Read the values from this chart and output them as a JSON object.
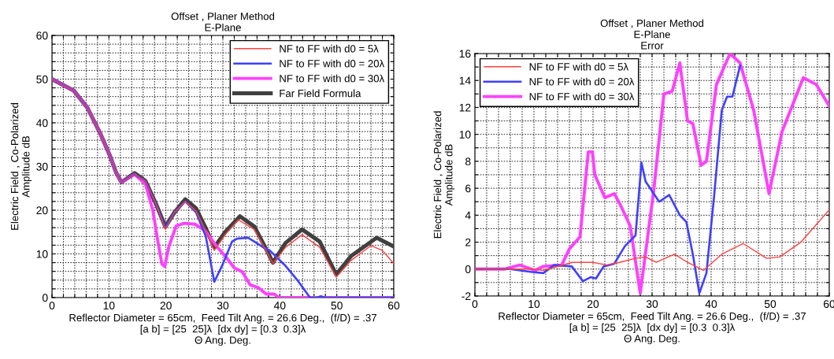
{
  "chart_data": [
    {
      "type": "line",
      "title": "Offset , Planer Method\nE-Plane",
      "ylabel": "Electric Field , Co-Polarized\nAmplitude dB",
      "xlabel": "Reflector Diameter = 65cm,  Feed Tilt Ang. = 26.6 Deg.,  (f/D) = .37\n[a b] = [25  25]λ  [dx dy] = [0.3  0.3]λ\nΘ Ang. Deg.",
      "xlim": [
        0,
        60
      ],
      "ylim": [
        0,
        60
      ],
      "xticks": [
        0,
        {
          "value": 2,
          "label": null
        },
        {
          "value": 4,
          "label": null
        },
        {
          "value": 6,
          "label": null
        },
        {
          "value": 8,
          "label": null
        },
        10,
        {
          "value": 12,
          "label": null
        },
        {
          "value": 14,
          "label": null
        },
        {
          "value": 16,
          "label": null
        },
        {
          "value": 18,
          "label": null
        },
        20,
        {
          "value": 22,
          "label": null
        },
        {
          "value": 24,
          "label": null
        },
        {
          "value": 26,
          "label": null
        },
        {
          "value": 28,
          "label": null
        },
        30,
        {
          "value": 32,
          "label": null
        },
        {
          "value": 34,
          "label": null
        },
        {
          "value": 36,
          "label": null
        },
        {
          "value": 38,
          "label": null
        },
        40,
        {
          "value": 42,
          "label": null
        },
        {
          "value": 44,
          "label": null
        },
        {
          "value": 46,
          "label": null
        },
        {
          "value": 48,
          "label": null
        },
        50,
        {
          "value": 52,
          "label": null
        },
        {
          "value": 54,
          "label": null
        },
        {
          "value": 56,
          "label": null
        },
        {
          "value": 58,
          "label": null
        },
        60
      ],
      "yticks": [
        0,
        {
          "value": 2,
          "label": null
        },
        {
          "value": 4,
          "label": null
        },
        {
          "value": 6,
          "label": null
        },
        {
          "value": 8,
          "label": null
        },
        10,
        {
          "value": 12,
          "label": null
        },
        {
          "value": 14,
          "label": null
        },
        {
          "value": 16,
          "label": null
        },
        {
          "value": 18,
          "label": null
        },
        20,
        {
          "value": 22,
          "label": null
        },
        {
          "value": 24,
          "label": null
        },
        {
          "value": 26,
          "label": null
        },
        {
          "value": 28,
          "label": null
        },
        30,
        {
          "value": 32,
          "label": null
        },
        {
          "value": 34,
          "label": null
        },
        {
          "value": 36,
          "label": null
        },
        {
          "value": 38,
          "label": null
        },
        40,
        {
          "value": 42,
          "label": null
        },
        {
          "value": 44,
          "label": null
        },
        {
          "value": 46,
          "label": null
        },
        {
          "value": 48,
          "label": null
        },
        50,
        {
          "value": 52,
          "label": null
        },
        {
          "value": 54,
          "label": null
        },
        {
          "value": 56,
          "label": null
        },
        {
          "value": 58,
          "label": null
        },
        60
      ],
      "grid": true,
      "legend": "top right",
      "line_style": "solid",
      "series": [
        {
          "name": "NF to FF with d0 = 5λ",
          "color": "#ff4040",
          "x": [
            0,
            3.8,
            6.2,
            8.5,
            10.1,
            11.3,
            12.2,
            14.5,
            16.4,
            18.3,
            19.9,
            21.5,
            23.4,
            25.3,
            27.1,
            28.5,
            30.4,
            32.7,
            35.5,
            37.4,
            38.8,
            41,
            43.9,
            47,
            49.9,
            52.5,
            56,
            58,
            60
          ],
          "values": [
            50,
            47.4,
            43.5,
            37.5,
            32.7,
            28.5,
            26.4,
            28.2,
            26.7,
            21.3,
            15.6,
            19.5,
            22,
            19.8,
            15,
            10.8,
            14.4,
            17.8,
            15.6,
            11.2,
            7.8,
            11.5,
            14.4,
            11.5,
            4.7,
            8.5,
            11.9,
            10.8,
            7.8
          ]
        },
        {
          "name": "NF to FF with d0 = 20λ",
          "color": "#4040ff",
          "x": [
            0,
            3.8,
            6.2,
            8.5,
            10.1,
            11.3,
            12.2,
            14.5,
            16.4,
            18.3,
            19.9,
            21.5,
            23.4,
            25.3,
            27,
            28.5,
            29.9,
            31.6,
            32.5,
            34.4,
            36.3,
            37.2,
            38.2,
            40.9,
            43.2,
            45.3,
            46.5,
            47.2,
            48,
            60
          ],
          "values": [
            50,
            47.4,
            43.5,
            37.5,
            32.7,
            28.5,
            26.4,
            28.2,
            26.7,
            21.3,
            16,
            19.5,
            22,
            19.5,
            14,
            3.6,
            7.4,
            12.8,
            13.5,
            13.7,
            12.2,
            11.4,
            10.8,
            7.4,
            3.8,
            0,
            0,
            0.3,
            0,
            0
          ]
        },
        {
          "name": "NF to FF with d0 = 30λ",
          "color": "#ff40ff",
          "x": [
            0,
            3.8,
            6.2,
            8.5,
            10.1,
            11.3,
            12.2,
            14.5,
            16.4,
            17.7,
            18.6,
            19.3,
            19.8,
            20.5,
            21.8,
            23.2,
            25.1,
            26.9,
            28.8,
            30.6,
            32,
            33.4,
            34.8,
            36.2,
            37.6,
            39,
            39.9,
            60
          ],
          "values": [
            50,
            47.4,
            43.5,
            37.5,
            32.7,
            28.5,
            26.4,
            28.2,
            26,
            20,
            12.8,
            7.7,
            7.1,
            11.6,
            16.4,
            17,
            16.8,
            15.3,
            11.9,
            9.2,
            6.8,
            5.9,
            2.9,
            2.3,
            0.8,
            0.8,
            0,
            0
          ]
        },
        {
          "name": "Far Field Formula",
          "color": "#404040",
          "x": [
            0,
            3.8,
            6.2,
            8.5,
            10.1,
            11.3,
            12.2,
            14.5,
            16.4,
            18.3,
            19.9,
            21.5,
            23.4,
            25.3,
            27.1,
            28.5,
            30.4,
            33,
            35.5,
            37.4,
            38.8,
            41,
            43.9,
            47,
            49.9,
            52.5,
            57,
            60
          ],
          "values": [
            50,
            47.4,
            43.5,
            37.5,
            32.7,
            28.5,
            26.4,
            28.5,
            26.7,
            21.3,
            16.2,
            19.5,
            22.5,
            20.4,
            15.6,
            11.5,
            15,
            18.6,
            16.3,
            11.6,
            8,
            12.5,
            15.6,
            12.8,
            5.3,
            9.5,
            13.7,
            11.7
          ]
        }
      ]
    },
    {
      "type": "line",
      "title": "Offset , Planer Method\nE-Plane\nError",
      "ylabel": "Electric Field , Co-Polarized\nAmplitude dB",
      "xlabel": "Reflector Diameter = 65cm,  Feed Tilt Ang. = 26.6 Deg.,  (f/D) = .37\n[a b] = [25  25]λ  [dx dy] = [0.3  0.3]λ\nΘ Ang. Deg.",
      "xlim": [
        0,
        60
      ],
      "ylim": [
        -2,
        16
      ],
      "xticks": [
        0,
        {
          "value": 2,
          "label": null
        },
        {
          "value": 4,
          "label": null
        },
        {
          "value": 6,
          "label": null
        },
        {
          "value": 8,
          "label": null
        },
        10,
        {
          "value": 12,
          "label": null
        },
        {
          "value": 14,
          "label": null
        },
        {
          "value": 16,
          "label": null
        },
        {
          "value": 18,
          "label": null
        },
        20,
        {
          "value": 22,
          "label": null
        },
        {
          "value": 24,
          "label": null
        },
        {
          "value": 26,
          "label": null
        },
        {
          "value": 28,
          "label": null
        },
        30,
        {
          "value": 32,
          "label": null
        },
        {
          "value": 34,
          "label": null
        },
        {
          "value": 36,
          "label": null
        },
        {
          "value": 38,
          "label": null
        },
        40,
        {
          "value": 42,
          "label": null
        },
        {
          "value": 44,
          "label": null
        },
        {
          "value": 46,
          "label": null
        },
        {
          "value": 48,
          "label": null
        },
        50,
        {
          "value": 52,
          "label": null
        },
        {
          "value": 54,
          "label": null
        },
        {
          "value": 56,
          "label": null
        },
        {
          "value": 58,
          "label": null
        },
        60
      ],
      "yticks": [
        -2,
        {
          "value": -1,
          "label": null
        },
        0,
        {
          "value": 1,
          "label": null
        },
        2,
        {
          "value": 3,
          "label": null
        },
        4,
        {
          "value": 5,
          "label": null
        },
        6,
        {
          "value": 7,
          "label": null
        },
        8,
        {
          "value": 9,
          "label": null
        },
        10,
        {
          "value": 11,
          "label": null
        },
        12,
        {
          "value": 13,
          "label": null
        },
        14,
        {
          "value": 15,
          "label": null
        },
        16
      ],
      "grid": true,
      "legend": "top left",
      "line_style": "solid",
      "series": [
        {
          "name": "NF to FF with d0 = 5λ",
          "color": "#ff4040",
          "x": [
            0,
            6,
            10,
            11.6,
            16.5,
            20,
            22.3,
            24.5,
            27.2,
            28.9,
            30.7,
            33.8,
            36,
            38.7,
            41.8,
            45.4,
            49.4,
            51.6,
            55.2,
            60
          ],
          "values": [
            0,
            0,
            0,
            -0.1,
            0.5,
            0.5,
            0.3,
            0.5,
            0.8,
            0.9,
            0.5,
            1.1,
            0.5,
            -0.1,
            1.1,
            1.9,
            0.8,
            0.9,
            2,
            4.4
          ]
        },
        {
          "name": "NF to FF with d0 = 20λ",
          "color": "#4040ff",
          "x": [
            0,
            6,
            9.4,
            11.6,
            13.4,
            16.4,
            18.3,
            19.6,
            20.5,
            21.8,
            23.6,
            25.4,
            27.2,
            28.2,
            28.9,
            31.2,
            32.9,
            34.7,
            35.8,
            36.9,
            38,
            39.2,
            40.5,
            41.8,
            42.7,
            43.6,
            44.9
          ],
          "values": [
            0,
            0,
            -0.2,
            -0.3,
            0.3,
            0.2,
            -0.9,
            -0.6,
            -0.7,
            0.2,
            0.4,
            1.7,
            2.5,
            7.9,
            6.5,
            5,
            5.5,
            4,
            3.5,
            1.1,
            -1.8,
            -0.3,
            5.4,
            11.8,
            12.8,
            12.8,
            15.1
          ]
        },
        {
          "name": "NF to FF with d0 = 30λ",
          "color": "#ff40ff",
          "x": [
            0,
            5,
            7.6,
            10.2,
            11.6,
            14.7,
            16,
            17.8,
            19.2,
            19.9,
            20.3,
            22,
            23.6,
            24.7,
            26.3,
            28,
            30.3,
            32,
            33.4,
            34.7,
            36,
            36.9,
            38.3,
            39.2,
            40.9,
            43.2,
            44.9,
            47.2,
            49.8,
            52,
            55.6,
            57.8,
            60
          ],
          "values": [
            0,
            0,
            0.3,
            -0.1,
            0.2,
            0.3,
            1.5,
            2.4,
            8.7,
            8.7,
            7,
            5.3,
            5.6,
            4.7,
            3.2,
            -1.8,
            5.9,
            13,
            13.2,
            15.3,
            11,
            10.8,
            7.7,
            8,
            13.7,
            16,
            15.3,
            11.8,
            5.6,
            10.2,
            14.2,
            13.7,
            12.1
          ]
        }
      ]
    }
  ]
}
